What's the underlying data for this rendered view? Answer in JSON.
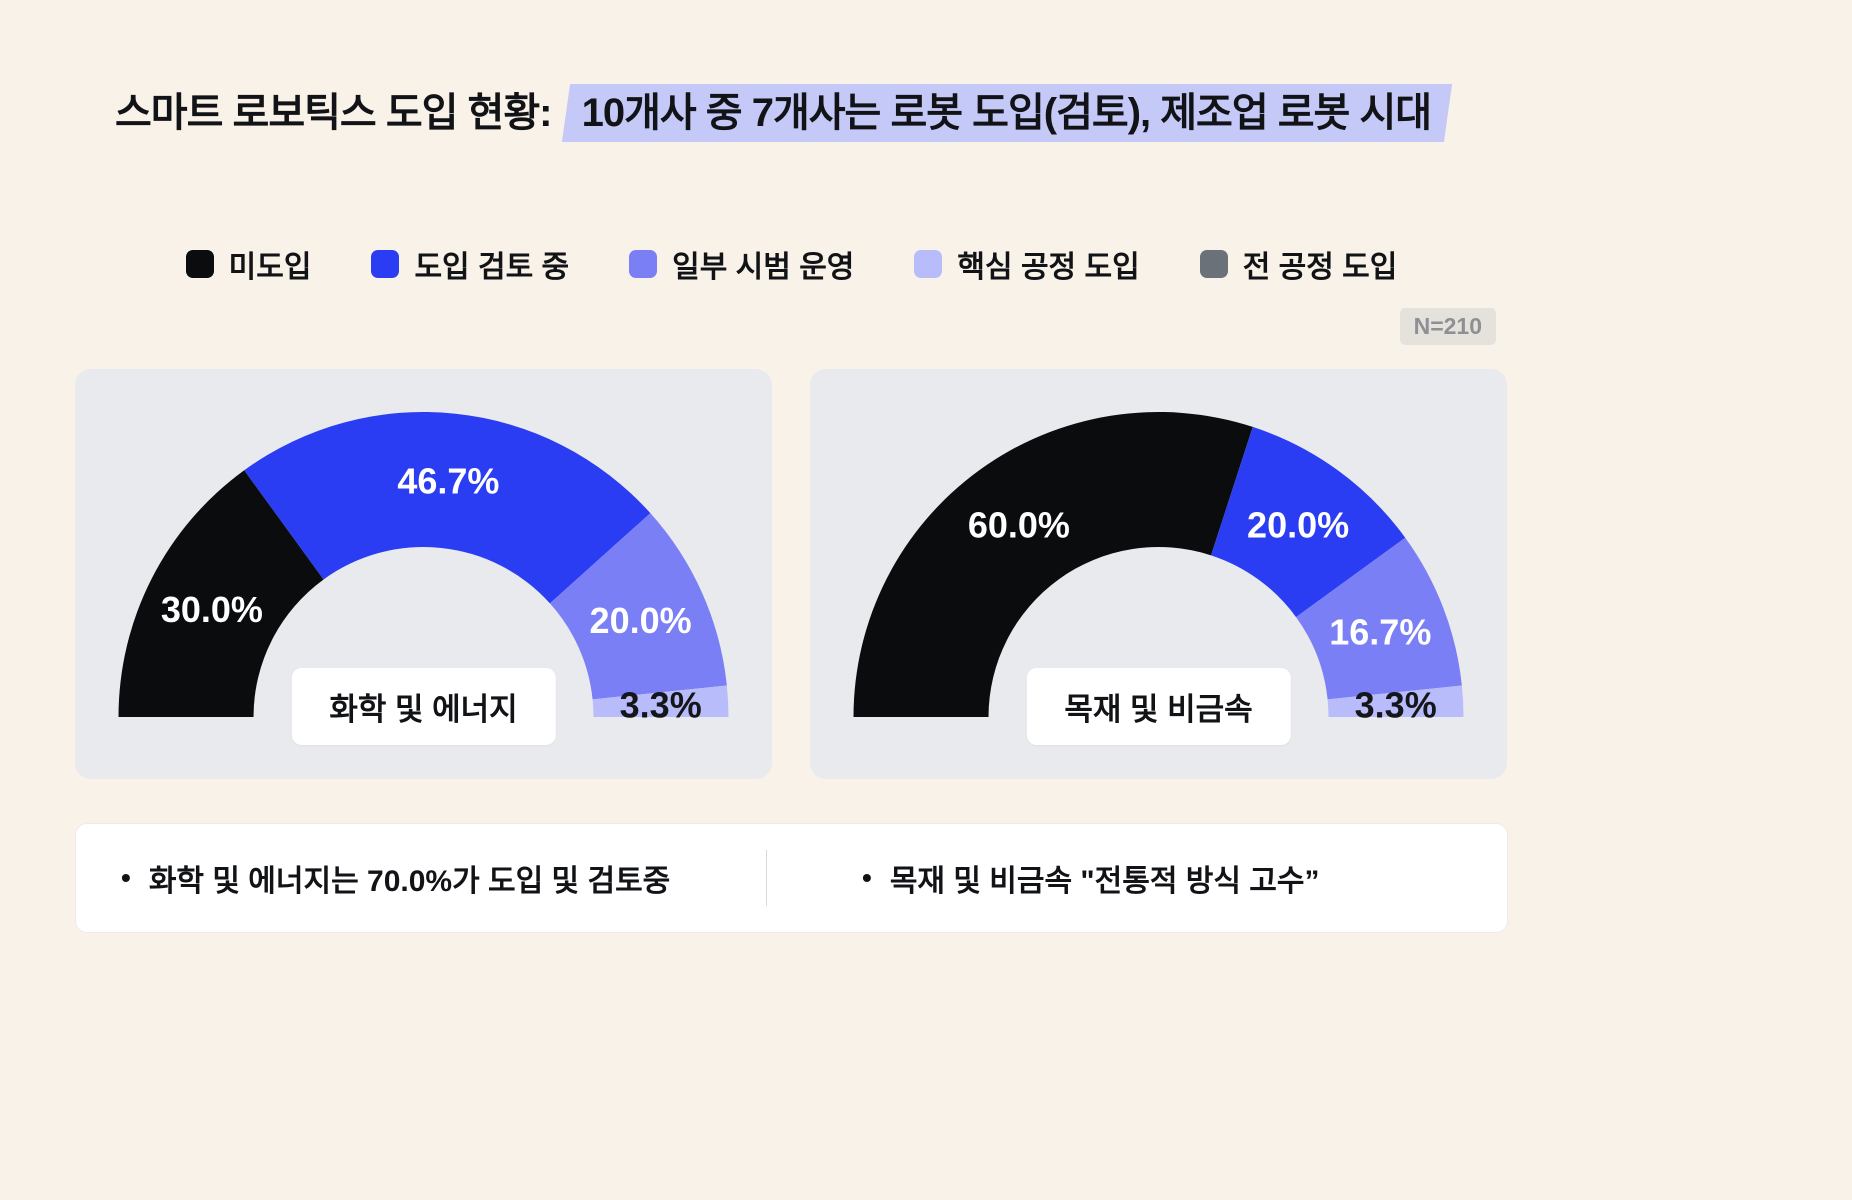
{
  "title": {
    "prefix": "스마트 로보틱스 도입 현황: ",
    "highlight": "10개사 중 7개사는 로봇 도입(검토), 제조업 로봇 시대"
  },
  "badge": "N=210",
  "legend": [
    {
      "label": "미도입",
      "color": "#0b0c0e"
    },
    {
      "label": "도입 검토 중",
      "color": "#2b3df2"
    },
    {
      "label": "일부 시범 운영",
      "color": "#7b7ff6"
    },
    {
      "label": "핵심 공정 도입",
      "color": "#b9bcfa"
    },
    {
      "label": "전 공정 도입",
      "color": "#6b7178"
    }
  ],
  "chart_data": [
    {
      "type": "pie",
      "variant": "semi_donut",
      "title": "화학 및 에너지",
      "unit": "percent",
      "legend_position": "top",
      "segments": [
        {
          "label": "미도입",
          "value": 30.0,
          "display": "30.0%",
          "color": "#0b0c0e",
          "text_color": "#ffffff"
        },
        {
          "label": "도입 검토 중",
          "value": 46.7,
          "display": "46.7%",
          "color": "#2b3df2",
          "text_color": "#ffffff"
        },
        {
          "label": "일부 시범 운영",
          "value": 20.0,
          "display": "20.0%",
          "color": "#7b7ff6",
          "text_color": "#ffffff"
        },
        {
          "label": "핵심 공정 도입",
          "value": 3.3,
          "display": "3.3%",
          "color": "#b9bcfa",
          "text_color": "#15161a"
        },
        {
          "label": "전 공정 도입",
          "value": 0,
          "display": "",
          "color": "#6b7178",
          "text_color": "#ffffff"
        }
      ]
    },
    {
      "type": "pie",
      "variant": "semi_donut",
      "title": "목재 및 비금속",
      "unit": "percent",
      "legend_position": "top",
      "segments": [
        {
          "label": "미도입",
          "value": 60.0,
          "display": "60.0%",
          "color": "#0b0c0e",
          "text_color": "#ffffff"
        },
        {
          "label": "도입 검토 중",
          "value": 20.0,
          "display": "20.0%",
          "color": "#2b3df2",
          "text_color": "#ffffff"
        },
        {
          "label": "일부 시범 운영",
          "value": 16.7,
          "display": "16.7%",
          "color": "#7b7ff6",
          "text_color": "#ffffff"
        },
        {
          "label": "핵심 공정 도입",
          "value": 3.3,
          "display": "3.3%",
          "color": "#b9bcfa",
          "text_color": "#15161a"
        },
        {
          "label": "전 공정 도입",
          "value": 0,
          "display": "",
          "color": "#6b7178",
          "text_color": "#ffffff"
        }
      ]
    }
  ],
  "notes": [
    "화학 및 에너지는 70.0%가 도입 및 검토중",
    "목재 및 비금속 \"전통적 방식 고수”"
  ]
}
